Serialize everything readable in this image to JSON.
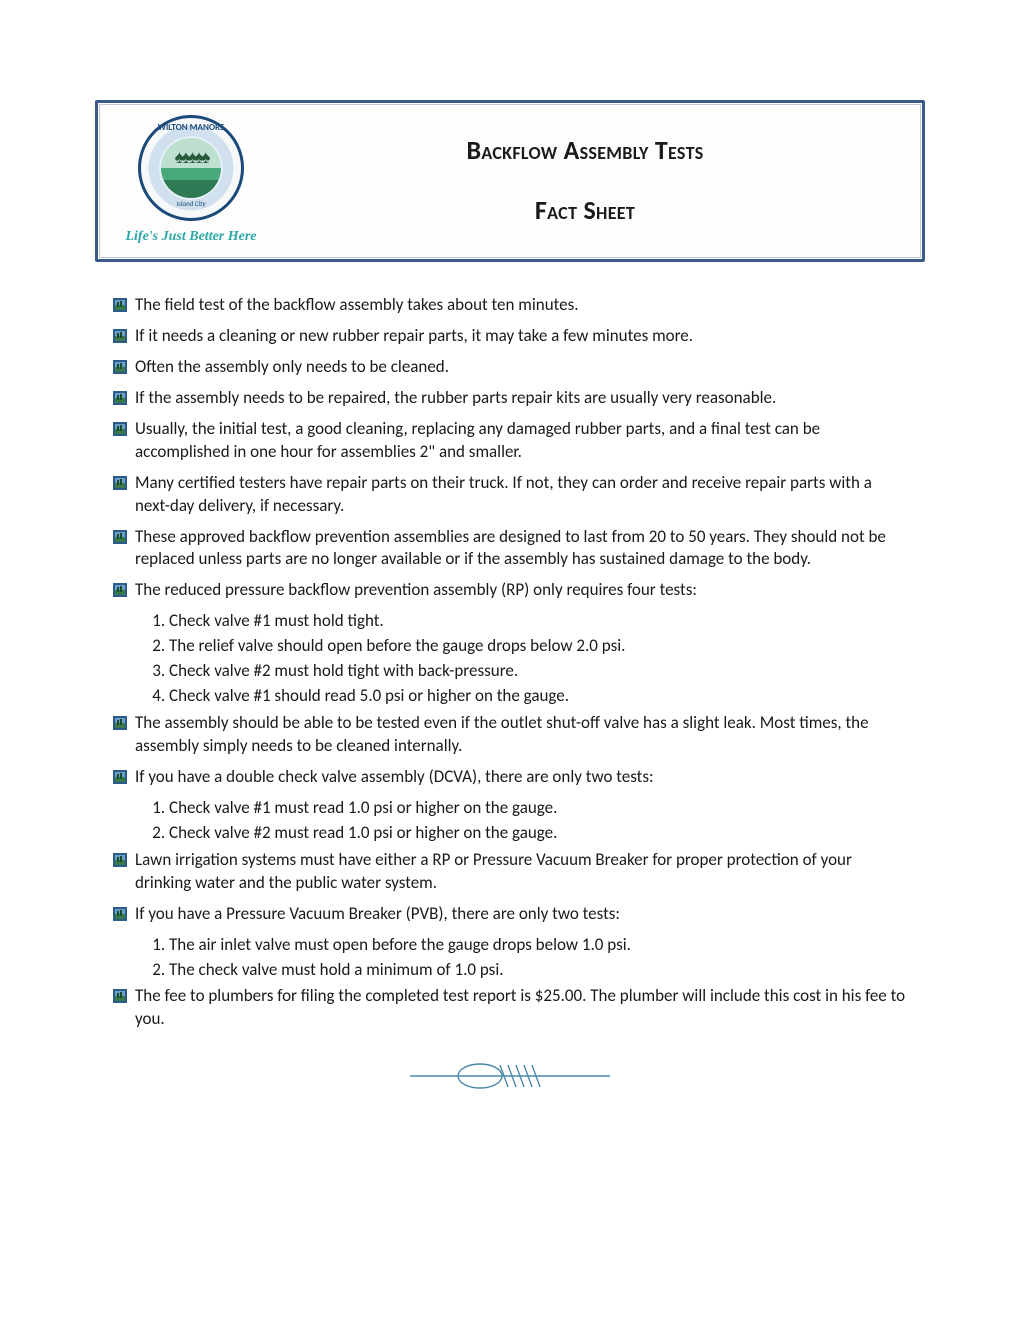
{
  "colors": {
    "border": "#3a5a8a",
    "tagline": "#2aa8a8",
    "text": "#1a1a1a",
    "divider": "#4a8aa8"
  },
  "header": {
    "seal_top": "WILTON MANORS",
    "seal_bottom": "Island City",
    "tagline": "Life's Just Better Here",
    "title_line1": "Backflow Assembly Tests",
    "title_line2": "Fact Sheet"
  },
  "bullets": [
    {
      "text": "The field test of the backflow assembly takes about ten minutes."
    },
    {
      "text": "If it needs a cleaning or new rubber repair parts, it may take a few minutes more."
    },
    {
      "text": "Often the assembly only needs to be cleaned."
    },
    {
      "text": "If the assembly needs to be repaired, the rubber parts repair kits are usually very reasonable."
    },
    {
      "text": "Usually, the initial test, a good cleaning, replacing any damaged rubber parts, and a final test can be accomplished in one hour for assemblies 2\" and smaller."
    },
    {
      "text": "Many certified testers have repair parts on their truck.  If not, they can order and receive repair parts with a next-day delivery, if necessary."
    },
    {
      "text": "These approved backflow prevention assemblies are designed to last from 20 to 50 years.  They should not be replaced unless parts are no longer available or if the assembly has sustained damage to the body."
    },
    {
      "text": "The reduced pressure backflow prevention assembly (RP) only requires four tests:",
      "sub": [
        "Check valve #1 must hold tight.",
        "The relief valve should open before the gauge drops below 2.0 psi.",
        "Check valve #2 must hold tight with back-pressure.",
        "Check valve #1 should read 5.0 psi or higher on the gauge."
      ]
    },
    {
      "text": "The assembly should be able to be tested even if the outlet shut-off valve has a slight leak.  Most times, the assembly simply needs to be cleaned internally."
    },
    {
      "text": "If you have a double check valve assembly (DCVA), there are only two tests:",
      "sub": [
        "Check valve #1 must read 1.0 psi or higher on the gauge.",
        "Check valve #2 must read 1.0 psi or higher on the gauge."
      ]
    },
    {
      "text": "Lawn irrigation systems must have either a RP or Pressure Vacuum Breaker for proper protection of your drinking water and the public water system."
    },
    {
      "text": "If you have a Pressure Vacuum Breaker (PVB), there are only two tests:",
      "sub": [
        "The air inlet valve must open before the gauge drops below 1.0 psi.",
        "The check valve must hold a minimum of 1.0 psi."
      ]
    },
    {
      "text": "The fee to plumbers for filing the completed test report is $25.00.  The plumber will include this cost in his fee to you."
    }
  ]
}
